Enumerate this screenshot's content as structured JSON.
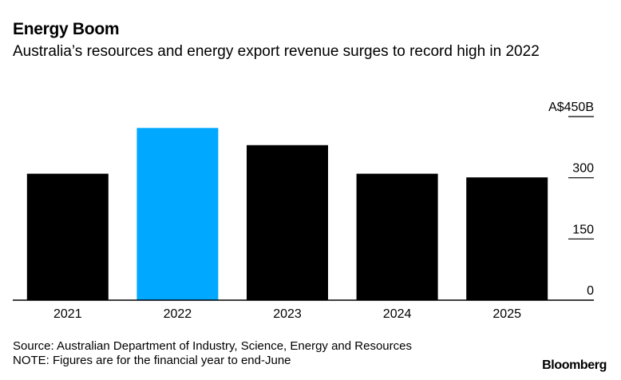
{
  "title": "Energy Boom",
  "subtitle": "Australia’s resources and energy export revenue surges to record high in 2022",
  "source": "Source: Australian Department of Industry, Science, Energy and Resources",
  "note": "NOTE: Figures are for the financial year to end-June",
  "brand": "Bloomberg",
  "chart_data": {
    "type": "bar",
    "categories": [
      "2021",
      "2022",
      "2023",
      "2024",
      "2025"
    ],
    "values": [
      310,
      422,
      380,
      310,
      301
    ],
    "highlight_index": 1,
    "ylim": [
      0,
      450
    ],
    "yticks": [
      0,
      150,
      300,
      450
    ],
    "ytick_labels": [
      "0",
      "150",
      "300",
      "A$450B"
    ],
    "y_axis_position": "right",
    "grid": false,
    "colors": {
      "bar": "#000000",
      "highlight": "#00a8ff",
      "axis": "#000000"
    }
  }
}
